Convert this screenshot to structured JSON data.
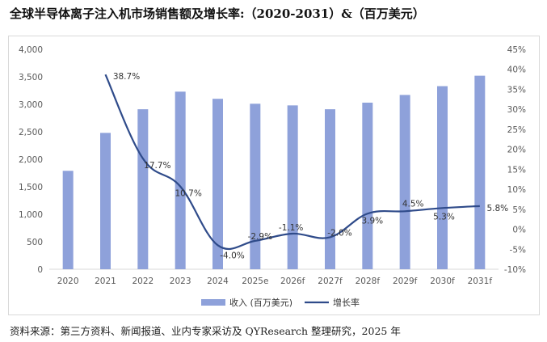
{
  "title": "全球半导体离子注入机市场销售额及增长率:（2020-2031）&（百万美元）",
  "source": "资料来源：第三方资料、新闻报道、业内专家采访及 QYResearch 整理研究，2025 年",
  "colors": {
    "bar": "#8EA1DA",
    "line": "#2F4B8A",
    "axis_text": "#595959",
    "grid": "#d9d9d9"
  },
  "chart_data": {
    "type": "bar+line",
    "categories": [
      "2020",
      "2021",
      "2022",
      "2023",
      "2024",
      "2025e",
      "2026f",
      "2027f",
      "2028f",
      "2029f",
      "2030f",
      "2031f"
    ],
    "series": [
      {
        "name": "收入 (百万美元)",
        "type": "bar",
        "axis": "left",
        "values": [
          1790,
          2480,
          2910,
          3230,
          3100,
          3010,
          2980,
          2910,
          3030,
          3170,
          3330,
          3520
        ]
      },
      {
        "name": "增长率",
        "type": "line",
        "axis": "right",
        "values": [
          null,
          38.7,
          17.7,
          10.7,
          -4.0,
          -2.9,
          -1.1,
          -2.0,
          3.9,
          4.5,
          5.3,
          5.8
        ],
        "labels": [
          "",
          "38.7%",
          "17.7%",
          "10.7%",
          "-4.0%",
          "-2.9%",
          "-1.1%",
          "-2.0%",
          "3.9%",
          "4.5%",
          "5.3%",
          "5.8%"
        ]
      }
    ],
    "y_left": {
      "min": 0,
      "max": 4000,
      "step": 500,
      "ticks": [
        "0",
        "500",
        "1,000",
        "1,500",
        "2,000",
        "2,500",
        "3,000",
        "3,500",
        "4,000"
      ]
    },
    "y_right": {
      "min": -10,
      "max": 45,
      "step": 5,
      "ticks": [
        "-10%",
        "-5%",
        "0%",
        "5%",
        "10%",
        "15%",
        "20%",
        "25%",
        "30%",
        "35%",
        "40%",
        "45%"
      ]
    },
    "legend": {
      "position": "bottom",
      "items": [
        "收入 (百万美元)",
        "增长率"
      ]
    },
    "grid": false
  }
}
